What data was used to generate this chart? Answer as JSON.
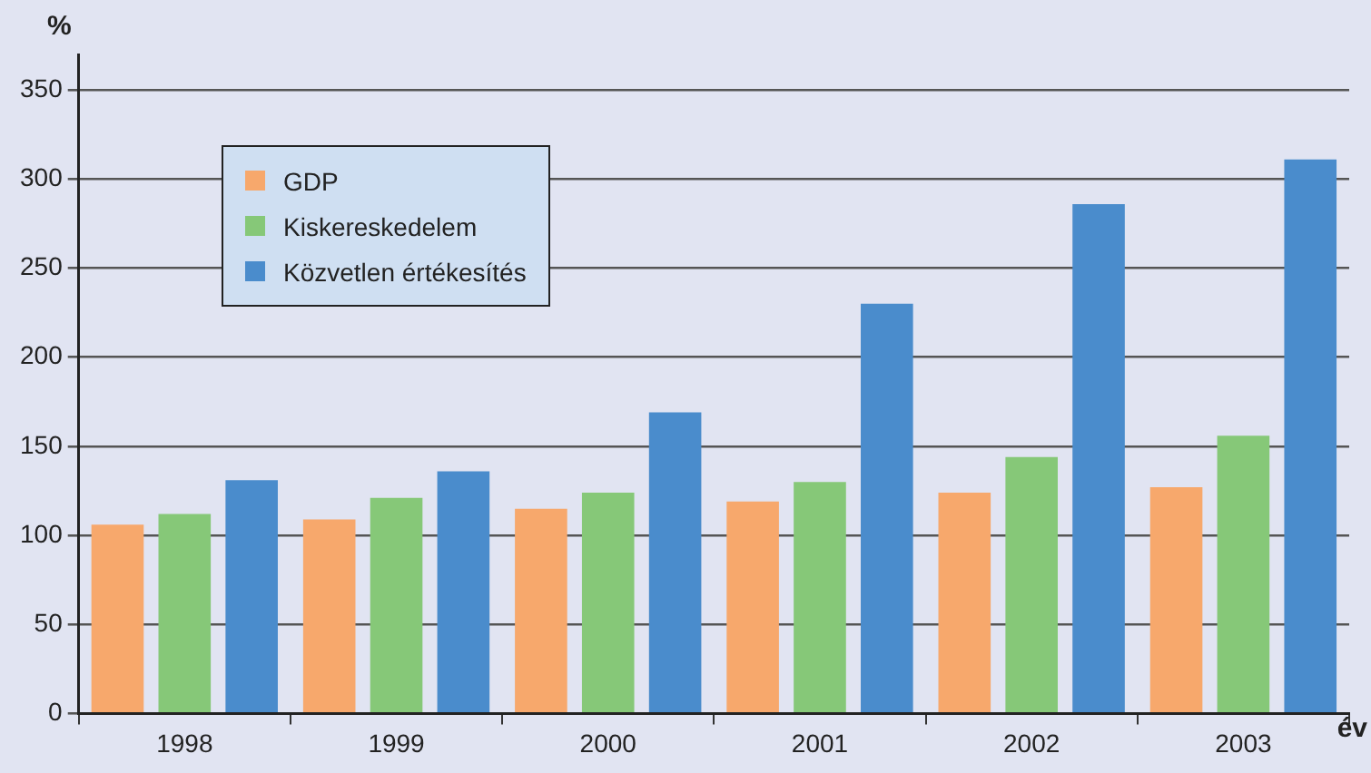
{
  "chart_data": {
    "type": "bar",
    "ylabel": "%",
    "xlabel": "év",
    "categories": [
      "1998",
      "1999",
      "2000",
      "2001",
      "2002",
      "2003"
    ],
    "series": [
      {
        "name": "GDP",
        "color": "#f7a86c",
        "values": [
          106,
          109,
          115,
          119,
          124,
          127
        ]
      },
      {
        "name": "Kiskereskedelem",
        "color": "#86c878",
        "values": [
          112,
          121,
          124,
          130,
          144,
          156
        ]
      },
      {
        "name": "Közvetlen értékesítés",
        "color": "#4a8ccc",
        "values": [
          131,
          136,
          169,
          230,
          286,
          311
        ]
      }
    ],
    "ylim": [
      0,
      370
    ],
    "yticks": [
      0,
      50,
      100,
      150,
      200,
      250,
      300,
      350
    ],
    "grid": "y",
    "legend": "top left"
  }
}
